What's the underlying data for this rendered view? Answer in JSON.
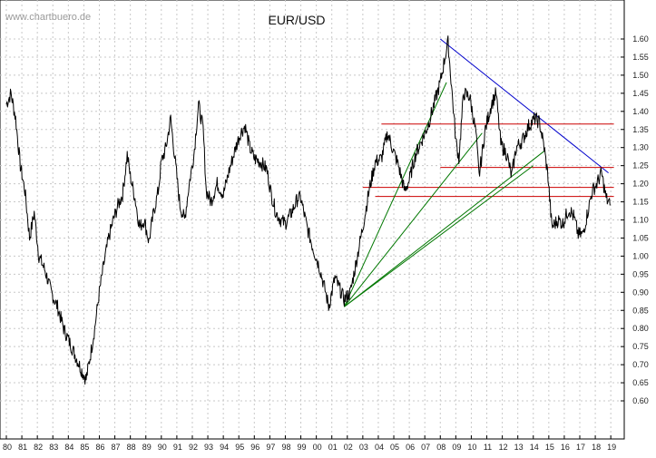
{
  "watermark": "www.chartbuero.de",
  "chart_data": {
    "type": "line",
    "title": "EUR/USD",
    "xlabel": "",
    "ylabel": "",
    "x_tick_labels": [
      "80",
      "81",
      "82",
      "83",
      "84",
      "85",
      "86",
      "87",
      "88",
      "89",
      "90",
      "91",
      "92",
      "93",
      "94",
      "95",
      "96",
      "97",
      "98",
      "99",
      "00",
      "01",
      "02",
      "03",
      "04",
      "05",
      "06",
      "07",
      "08",
      "09",
      "10",
      "11",
      "12",
      "13",
      "14",
      "15",
      "16",
      "17",
      "18",
      "19"
    ],
    "y_ticks": [
      "0.60",
      "0.65",
      "0.70",
      "0.75",
      "0.80",
      "0.85",
      "0.90",
      "0.95",
      "1.00",
      "1.05",
      "1.10",
      "1.15",
      "1.20",
      "1.25",
      "1.30",
      "1.35",
      "1.40",
      "1.45",
      "1.50",
      "1.55",
      "1.60"
    ],
    "xlim": [
      1980.0,
      2019.4
    ],
    "ylim": [
      0.575,
      1.655
    ],
    "grid": true,
    "y_axis_side": "right",
    "series": [
      {
        "color": "#000000",
        "x": [
          1980.0,
          1980.3,
          1980.6,
          1980.9,
          1981.2,
          1981.5,
          1981.8,
          1982.1,
          1982.5,
          1982.9,
          1983.3,
          1983.7,
          1984.1,
          1984.5,
          1984.9,
          1985.15,
          1985.4,
          1985.7,
          1986.0,
          1986.3,
          1986.6,
          1986.9,
          1987.2,
          1987.5,
          1987.8,
          1988.0,
          1988.3,
          1988.6,
          1988.9,
          1989.2,
          1989.5,
          1989.8,
          1990.0,
          1990.3,
          1990.6,
          1990.9,
          1991.2,
          1991.5,
          1991.8,
          1992.1,
          1992.4,
          1992.7,
          1992.9,
          1993.2,
          1993.6,
          1994.0,
          1994.4,
          1994.8,
          1995.1,
          1995.4,
          1995.7,
          1996.0,
          1996.4,
          1996.8,
          1997.1,
          1997.4,
          1997.7,
          1998.0,
          1998.4,
          1998.8,
          1999.0,
          1999.4,
          1999.8,
          2000.2,
          2000.6,
          2000.8,
          2001.2,
          2001.6,
          2001.8,
          2002.2,
          2002.6,
          2003.0,
          2003.4,
          2003.8,
          2004.2,
          2004.6,
          2004.9,
          2005.3,
          2005.7,
          2006.0,
          2006.4,
          2006.8,
          2007.2,
          2007.6,
          2008.0,
          2008.3,
          2008.5,
          2008.8,
          2009.0,
          2009.2,
          2009.5,
          2009.9,
          2010.3,
          2010.5,
          2010.9,
          2011.3,
          2011.6,
          2011.9,
          2012.3,
          2012.6,
          2012.9,
          2013.3,
          2013.7,
          2014.1,
          2014.4,
          2014.7,
          2014.95,
          2015.2,
          2015.6,
          2015.9,
          2016.3,
          2016.6,
          2016.9,
          2017.2,
          2017.5,
          2017.8,
          2018.1,
          2018.4,
          2018.7,
          2018.95
        ],
        "y": [
          1.42,
          1.45,
          1.38,
          1.25,
          1.18,
          1.05,
          1.12,
          1.0,
          0.96,
          0.9,
          0.86,
          0.8,
          0.76,
          0.72,
          0.68,
          0.66,
          0.72,
          0.8,
          0.9,
          0.98,
          1.05,
          1.1,
          1.14,
          1.17,
          1.28,
          1.22,
          1.16,
          1.08,
          1.1,
          1.04,
          1.12,
          1.18,
          1.26,
          1.3,
          1.38,
          1.26,
          1.14,
          1.1,
          1.2,
          1.28,
          1.42,
          1.35,
          1.18,
          1.15,
          1.2,
          1.17,
          1.24,
          1.3,
          1.34,
          1.36,
          1.3,
          1.27,
          1.26,
          1.24,
          1.17,
          1.12,
          1.1,
          1.09,
          1.12,
          1.16,
          1.16,
          1.08,
          1.02,
          0.97,
          0.9,
          0.86,
          0.94,
          0.9,
          0.88,
          0.9,
          0.99,
          1.08,
          1.18,
          1.26,
          1.27,
          1.34,
          1.3,
          1.25,
          1.18,
          1.21,
          1.28,
          1.32,
          1.36,
          1.42,
          1.48,
          1.55,
          1.59,
          1.43,
          1.32,
          1.27,
          1.45,
          1.44,
          1.34,
          1.22,
          1.35,
          1.42,
          1.45,
          1.31,
          1.28,
          1.22,
          1.3,
          1.32,
          1.36,
          1.38,
          1.37,
          1.3,
          1.22,
          1.08,
          1.1,
          1.09,
          1.13,
          1.11,
          1.06,
          1.06,
          1.12,
          1.18,
          1.2,
          1.23,
          1.16,
          1.14
        ]
      }
    ],
    "annotations": {
      "trend_lines": [
        {
          "color": "#0000cc",
          "from": [
            2008.0,
            1.6
          ],
          "to": [
            2018.85,
            1.23
          ]
        },
        {
          "color": "#cc0000",
          "from": [
            2004.2,
            1.365
          ],
          "to": [
            2019.2,
            1.365
          ]
        },
        {
          "color": "#cc0000",
          "from": [
            2008.0,
            1.245
          ],
          "to": [
            2019.2,
            1.245
          ]
        },
        {
          "color": "#cc0000",
          "from": [
            2003.0,
            1.19
          ],
          "to": [
            2019.2,
            1.19
          ]
        },
        {
          "color": "#cc0000",
          "from": [
            2003.8,
            1.165
          ],
          "to": [
            2019.2,
            1.165
          ]
        },
        {
          "color": "#007700",
          "from": [
            2001.8,
            0.86
          ],
          "to": [
            2008.4,
            1.48
          ]
        },
        {
          "color": "#007700",
          "from": [
            2001.8,
            0.86
          ],
          "to": [
            2010.7,
            1.34
          ]
        },
        {
          "color": "#007700",
          "from": [
            2001.8,
            0.86
          ],
          "to": [
            2014.0,
            1.25
          ]
        },
        {
          "color": "#007700",
          "from": [
            2001.8,
            0.86
          ],
          "to": [
            2014.7,
            1.29
          ]
        }
      ]
    }
  }
}
